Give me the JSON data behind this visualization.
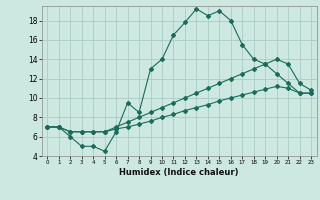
{
  "title": "",
  "xlabel": "Humidex (Indice chaleur)",
  "bg_color": "#cce8e0",
  "grid_color": "#aaccc4",
  "line_color": "#1a6b5a",
  "xlim": [
    -0.5,
    23.5
  ],
  "ylim": [
    4,
    19.5
  ],
  "yticks": [
    4,
    6,
    8,
    10,
    12,
    14,
    16,
    18
  ],
  "xticks": [
    0,
    1,
    2,
    3,
    4,
    5,
    6,
    7,
    8,
    9,
    10,
    11,
    12,
    13,
    14,
    15,
    16,
    17,
    18,
    19,
    20,
    21,
    22,
    23
  ],
  "curve1_x": [
    0,
    1,
    2,
    3,
    4,
    5,
    6,
    7,
    8,
    9,
    10,
    11,
    12,
    13,
    14,
    15,
    16,
    17,
    18,
    19,
    20,
    21,
    22,
    23
  ],
  "curve1_y": [
    7,
    7,
    6,
    5,
    5,
    4.5,
    6.5,
    9.5,
    8.5,
    13,
    14,
    16.5,
    17.8,
    19.2,
    18.5,
    19.0,
    18.0,
    15.5,
    14,
    13.5,
    12.5,
    11.5,
    10.5,
    10.5
  ],
  "curve2_x": [
    0,
    1,
    2,
    3,
    4,
    5,
    6,
    7,
    8,
    9,
    10,
    11,
    12,
    13,
    14,
    15,
    16,
    17,
    18,
    19,
    20,
    21,
    22,
    23
  ],
  "curve2_y": [
    7,
    7,
    6.5,
    6.5,
    6.5,
    6.5,
    7.0,
    7.5,
    8.0,
    8.5,
    9.0,
    9.5,
    10.0,
    10.5,
    11.0,
    11.5,
    12.0,
    12.5,
    13.0,
    13.5,
    14.0,
    13.5,
    11.5,
    10.8
  ],
  "curve3_x": [
    0,
    1,
    2,
    3,
    4,
    5,
    6,
    7,
    8,
    9,
    10,
    11,
    12,
    13,
    14,
    15,
    16,
    17,
    18,
    19,
    20,
    21,
    22,
    23
  ],
  "curve3_y": [
    7,
    7,
    6.5,
    6.5,
    6.5,
    6.5,
    6.8,
    7.0,
    7.3,
    7.6,
    8.0,
    8.3,
    8.7,
    9.0,
    9.3,
    9.7,
    10.0,
    10.3,
    10.6,
    10.9,
    11.2,
    11.0,
    10.5,
    10.5
  ]
}
